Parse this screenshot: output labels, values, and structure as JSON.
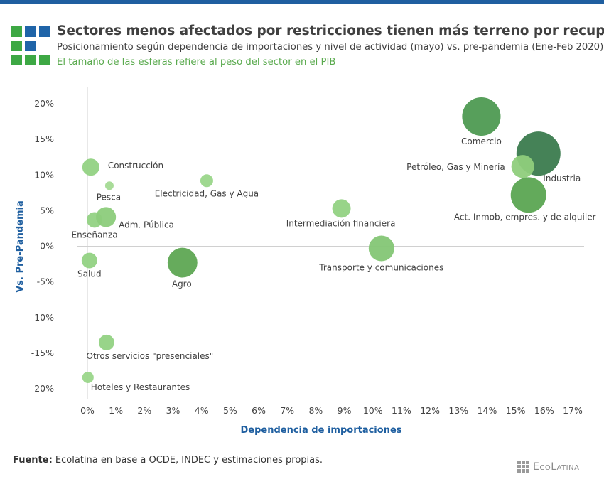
{
  "header": {
    "title": "Sectores menos afectados por restricciones tienen más terreno por recuperar",
    "subtitle": "Posicionamiento según dependencia de importaciones y nivel de actividad (mayo) vs. pre-pandemia (Ene-Feb 2020).",
    "note": "El tamaño de las esferas refiere al peso del sector en el PIB"
  },
  "footer": {
    "source_label": "Fuente:",
    "source_text": " Ecolatina en base a OCDE, INDEC y estimaciones propias.",
    "brand": "EcoLatina"
  },
  "colors": {
    "bar": "#1f5fa0",
    "blue": "#1f64a8",
    "green": "#3da844",
    "axis_title": "#1f5fa0"
  },
  "chart_data": {
    "type": "scatter",
    "title": "Sectores menos afectados por restricciones tienen más terreno por recuperar",
    "xlabel": "Dependencia de importaciones",
    "ylabel": "Vs. Pre-Pandemia",
    "xlim": [
      0,
      17
    ],
    "ylim": [
      -20,
      20
    ],
    "xticks": [
      "0%",
      "1%",
      "2%",
      "3%",
      "4%",
      "5%",
      "6%",
      "7%",
      "8%",
      "9%",
      "10%",
      "11%",
      "12%",
      "13%",
      "14%",
      "15%",
      "16%",
      "17%"
    ],
    "yticks": [
      "20%",
      "15%",
      "10%",
      "5%",
      "0%",
      "-5%",
      "-10%",
      "-15%",
      "-20%"
    ],
    "points": [
      {
        "label": "Comercio",
        "x": 13.8,
        "y": 18.2,
        "size": 12.2,
        "color": "#4e9a52"
      },
      {
        "label": "Industria",
        "x": 15.8,
        "y": 13.0,
        "size": 16.0,
        "color": "#3b7b4e"
      },
      {
        "label": "Petróleo, Gas y Minería",
        "x": 15.25,
        "y": 11.2,
        "size": 4.3,
        "color": "#8fcd7c"
      },
      {
        "label": "Act. Inmob, empres. y de alquiler",
        "x": 15.45,
        "y": 7.2,
        "size": 10.4,
        "color": "#5ba552"
      },
      {
        "label": "Construcción",
        "x": 0.12,
        "y": 11.1,
        "size": 2.4,
        "color": "#92d283"
      },
      {
        "label": "Pesca",
        "x": 0.77,
        "y": 8.5,
        "size": 0.6,
        "color": "#a4da94"
      },
      {
        "label": "Electricidad, Gas y Agua",
        "x": 4.18,
        "y": 9.2,
        "size": 1.35,
        "color": "#9ad68a"
      },
      {
        "label": "Enseñanza",
        "x": 0.25,
        "y": 3.7,
        "size": 2.0,
        "color": "#92d283"
      },
      {
        "label": "Adm. Pública",
        "x": 0.65,
        "y": 4.1,
        "size": 3.3,
        "color": "#8ccc7b"
      },
      {
        "label": "Salud",
        "x": 0.07,
        "y": -2.0,
        "size": 2.0,
        "color": "#92d283"
      },
      {
        "label": "Agro",
        "x": 3.33,
        "y": -2.3,
        "size": 7.3,
        "color": "#5ea653"
      },
      {
        "label": "Intermediación financiera",
        "x": 8.9,
        "y": 5.3,
        "size": 2.8,
        "color": "#92d283"
      },
      {
        "label": "Transporte y comunicaciones",
        "x": 10.3,
        "y": -0.3,
        "size": 5.4,
        "color": "#84c675"
      },
      {
        "label": "Otros servicios \"presenciales\"",
        "x": 0.67,
        "y": -13.5,
        "size": 2.0,
        "color": "#92d283"
      },
      {
        "label": "Hoteles y Restaurantes",
        "x": 0.02,
        "y": -18.4,
        "size": 1.07,
        "color": "#9ad68a"
      }
    ]
  }
}
